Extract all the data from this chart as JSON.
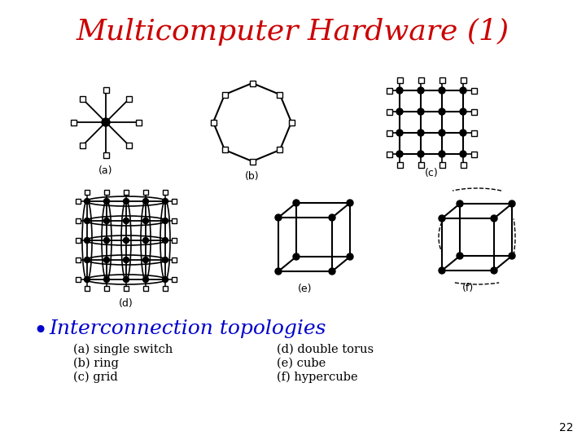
{
  "title": "Multicomputer Hardware (1)",
  "title_color": "#cc0000",
  "title_fontsize": 26,
  "bullet_text": "Interconnection topologies",
  "bullet_color": "#0000cc",
  "bullet_fontsize": 18,
  "labels_left": [
    "(a) single switch",
    "(b) ring",
    "(c) grid"
  ],
  "labels_right": [
    "(d) double torus",
    "(e) cube",
    "(f) hypercube"
  ],
  "sub_labels": [
    "(a)",
    "(b)",
    "(c)",
    "(d)",
    "(e)",
    "(f)"
  ],
  "page_number": "22",
  "bg_color": "#ffffff",
  "node_color": "#ffffff",
  "node_edge_color": "#000000",
  "line_color": "#000000"
}
